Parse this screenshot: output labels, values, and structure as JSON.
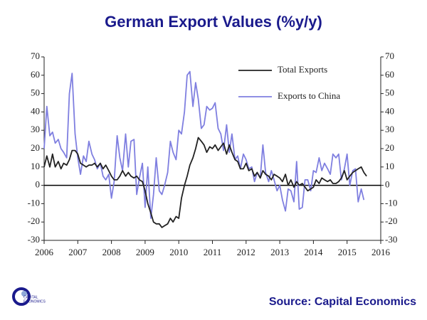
{
  "chart_data": {
    "type": "line",
    "title": "German Export Values (%y/y)",
    "source": "Source: Capital Economics",
    "logo": [
      "CAPITAL",
      "ECONOMICS"
    ],
    "x": [
      2006,
      2006.08,
      2006.17,
      2006.25,
      2006.33,
      2006.42,
      2006.5,
      2006.58,
      2006.67,
      2006.75,
      2006.83,
      2006.92,
      2007,
      2007.08,
      2007.17,
      2007.25,
      2007.33,
      2007.42,
      2007.5,
      2007.58,
      2007.67,
      2007.75,
      2007.83,
      2007.92,
      2008,
      2008.08,
      2008.17,
      2008.25,
      2008.33,
      2008.42,
      2008.5,
      2008.58,
      2008.67,
      2008.75,
      2008.83,
      2008.92,
      2009,
      2009.08,
      2009.17,
      2009.25,
      2009.33,
      2009.42,
      2009.5,
      2009.58,
      2009.67,
      2009.75,
      2009.83,
      2009.92,
      2010,
      2010.08,
      2010.17,
      2010.25,
      2010.33,
      2010.42,
      2010.5,
      2010.58,
      2010.67,
      2010.75,
      2010.83,
      2010.92,
      2011,
      2011.08,
      2011.17,
      2011.25,
      2011.33,
      2011.42,
      2011.5,
      2011.58,
      2011.67,
      2011.75,
      2011.83,
      2011.92,
      2012,
      2012.08,
      2012.17,
      2012.25,
      2012.33,
      2012.42,
      2012.5,
      2012.58,
      2012.67,
      2012.75,
      2012.83,
      2012.92,
      2013,
      2013.08,
      2013.17,
      2013.25,
      2013.33,
      2013.42,
      2013.5,
      2013.58,
      2013.67,
      2013.75,
      2013.83,
      2013.92,
      2014,
      2014.08,
      2014.17,
      2014.25,
      2014.33,
      2014.42,
      2014.5,
      2014.58,
      2014.67,
      2014.75,
      2014.83,
      2014.92,
      2015,
      2015.08,
      2015.17,
      2015.25,
      2015.33,
      2015.42,
      2015.5,
      2015.58
    ],
    "series": [
      {
        "name": "Total Exports",
        "color": "#222222",
        "values": [
          10,
          16,
          10,
          17,
          10,
          13,
          9,
          12,
          11,
          14,
          19,
          19,
          17,
          12,
          11,
          10,
          11,
          11,
          12,
          10,
          12,
          9,
          11,
          8,
          5,
          3,
          3,
          5,
          8,
          5,
          7,
          5,
          4,
          5,
          3,
          2,
          -3,
          -10,
          -15,
          -20,
          -21,
          -21,
          -23,
          -22,
          -21,
          -18,
          -20,
          -17,
          -18,
          -7,
          0,
          5,
          11,
          15,
          20,
          26,
          24,
          22,
          18,
          21,
          20,
          22,
          19,
          21,
          23,
          17,
          22,
          18,
          14,
          13,
          9,
          9,
          12,
          8,
          9,
          5,
          7,
          4,
          8,
          6,
          5,
          3,
          6,
          5,
          4,
          2,
          6,
          0,
          3,
          -1,
          2,
          0,
          1,
          -1,
          -3,
          -2,
          -1,
          3,
          1,
          4,
          3,
          2,
          3,
          1,
          1,
          2,
          4,
          8,
          3,
          5,
          7,
          8,
          9,
          10,
          7,
          5
        ]
      },
      {
        "name": "Exports to China",
        "color": "#7f7fe0",
        "values": [
          20,
          43,
          27,
          29,
          23,
          25,
          20,
          18,
          15,
          50,
          61,
          28,
          15,
          6,
          16,
          13,
          24,
          17,
          14,
          9,
          12,
          5,
          3,
          6,
          -7,
          2,
          27,
          15,
          8,
          28,
          10,
          24,
          25,
          -5,
          4,
          12,
          -12,
          10,
          -18,
          -5,
          15,
          -3,
          -5,
          0,
          7,
          24,
          18,
          14,
          30,
          28,
          40,
          60,
          62,
          43,
          56,
          47,
          31,
          33,
          43,
          41,
          42,
          45,
          31,
          28,
          19,
          33,
          18,
          28,
          14,
          16,
          9,
          17,
          14,
          9,
          10,
          2,
          7,
          4,
          22,
          7,
          2,
          8,
          3,
          -3,
          0,
          -8,
          -14,
          -2,
          -3,
          -9,
          13,
          -13,
          -12,
          3,
          3,
          -3,
          8,
          7,
          15,
          8,
          12,
          9,
          6,
          17,
          15,
          17,
          3,
          9,
          17,
          0,
          8,
          9,
          -9,
          -2,
          -8,
          null
        ]
      }
    ],
    "xlim": [
      2006,
      2016
    ],
    "xticks": [
      2006,
      2007,
      2008,
      2009,
      2010,
      2011,
      2012,
      2013,
      2014,
      2015,
      2016
    ],
    "ylim": [
      -30,
      70
    ],
    "yticks": [
      -30,
      -20,
      -10,
      0,
      10,
      20,
      30,
      40,
      50,
      60,
      70
    ],
    "y2lim": [
      -30,
      70
    ],
    "y2ticks": [
      -30,
      -20,
      -10,
      0,
      10,
      20,
      30,
      40,
      50,
      60,
      70
    ]
  }
}
